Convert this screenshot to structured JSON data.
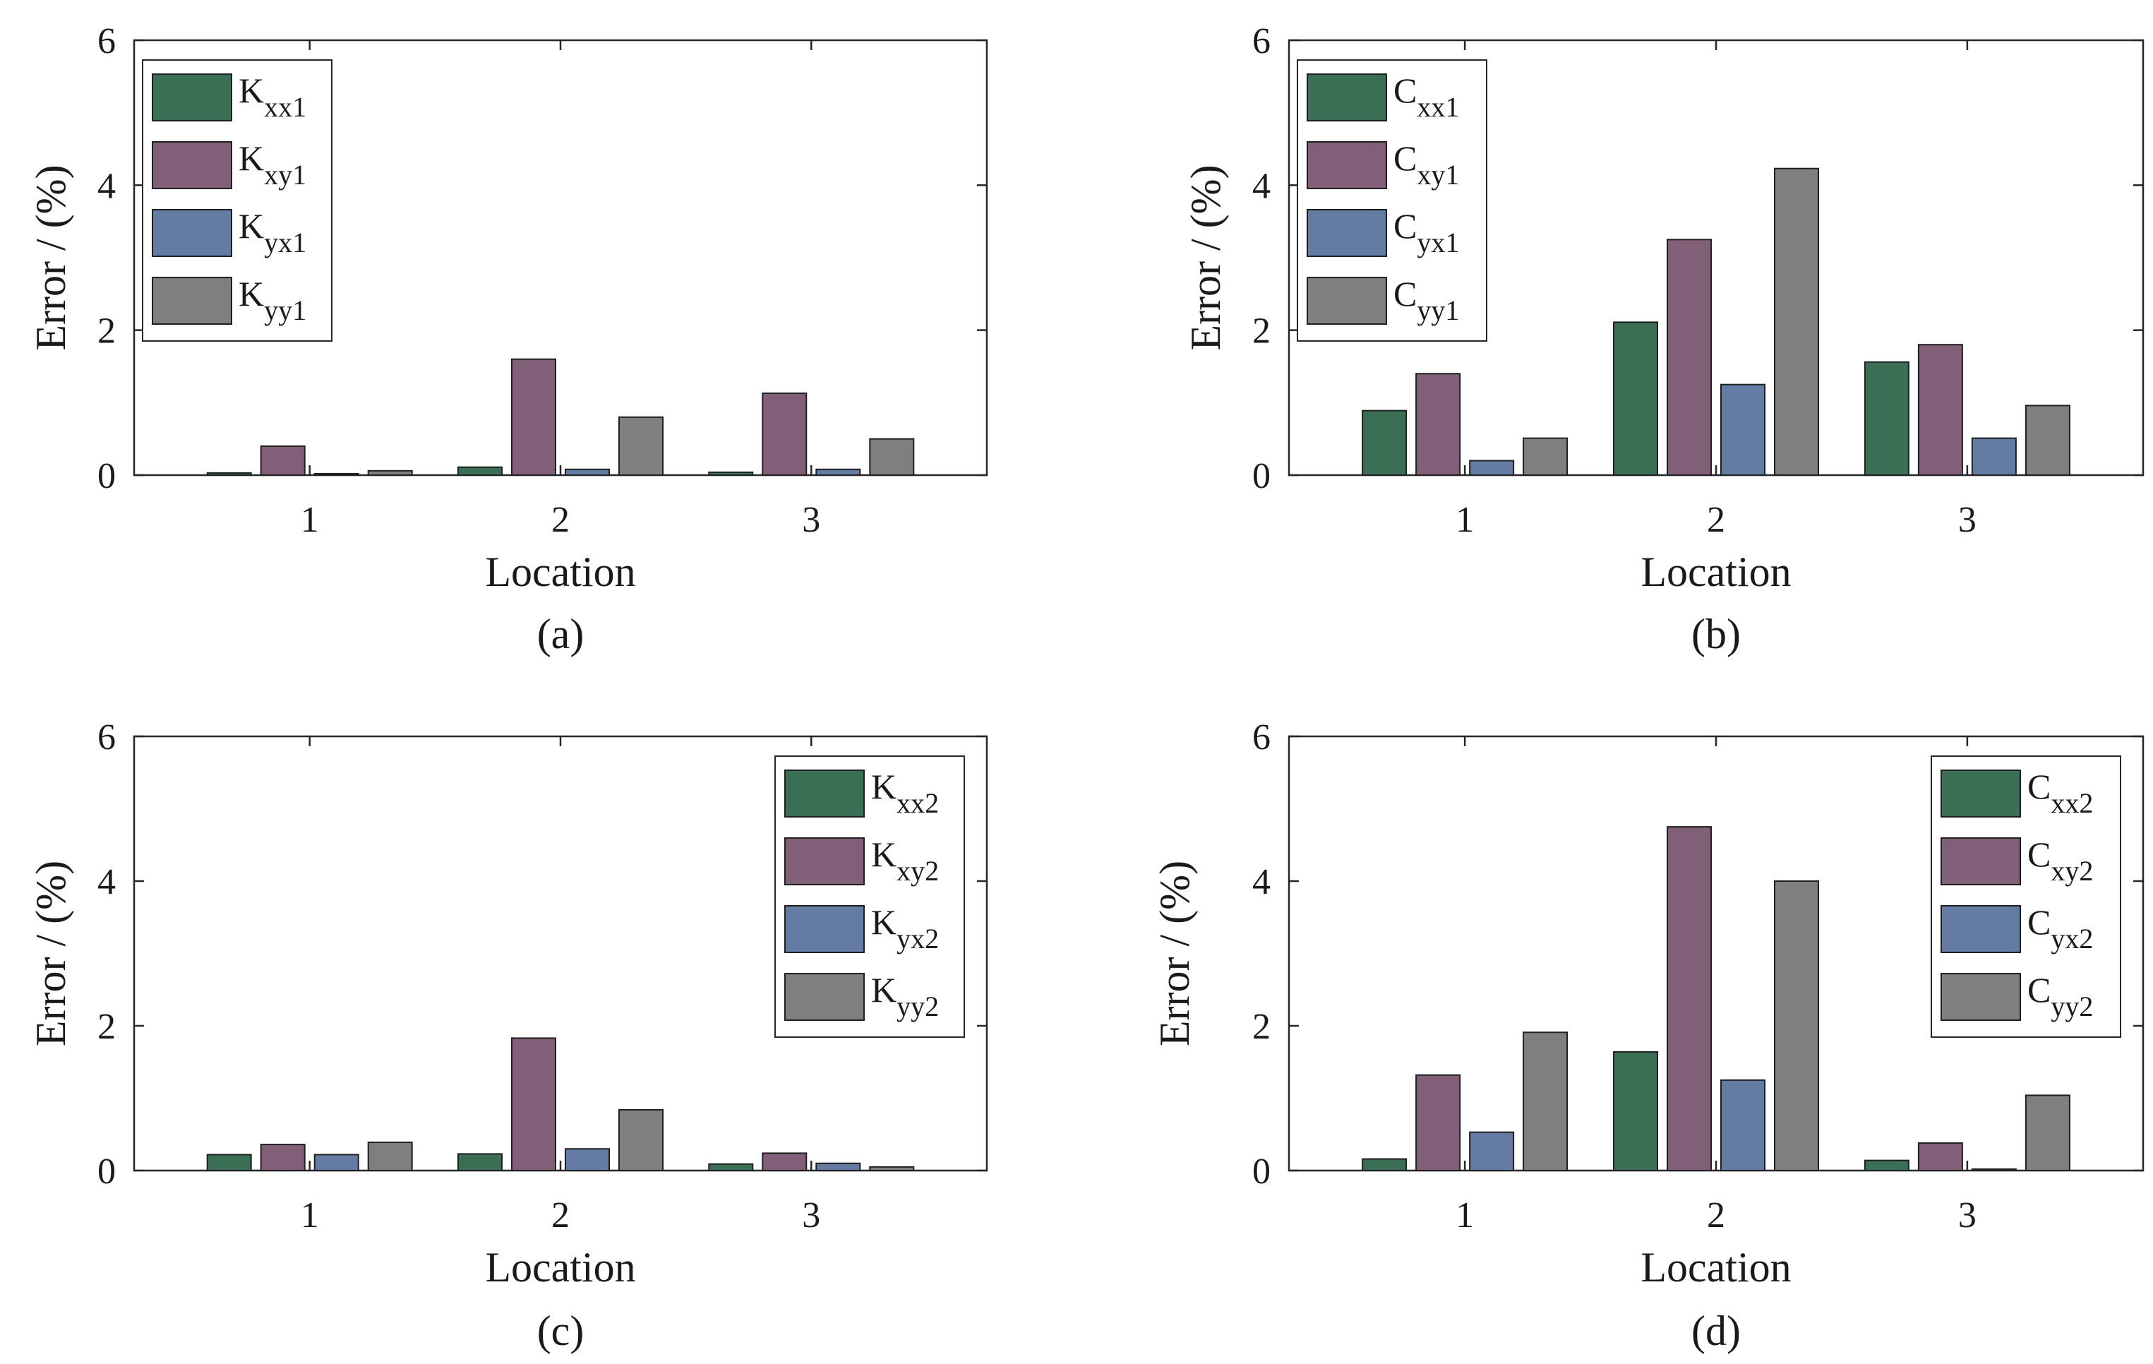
{
  "chart_data": [
    {
      "type": "bar",
      "panel": "a",
      "caption": "(a)",
      "xlabel": "Location",
      "ylabel": "Error / (%)",
      "categories": [
        "1",
        "2",
        "3"
      ],
      "ylim": [
        0,
        6
      ],
      "yticks": [
        "0",
        "2",
        "4",
        "6"
      ],
      "legend_position": "top-left",
      "series": [
        {
          "name": "K",
          "sub": "xx1",
          "color": "#3a6e55",
          "values": [
            0.03,
            0.11,
            0.04
          ]
        },
        {
          "name": "K",
          "sub": "xy1",
          "color": "#825f78",
          "values": [
            0.4,
            1.6,
            1.13
          ]
        },
        {
          "name": "K",
          "sub": "yx1",
          "color": "#647ba4",
          "values": [
            0.02,
            0.08,
            0.08
          ]
        },
        {
          "name": "K",
          "sub": "yy1",
          "color": "#7f7f7f",
          "values": [
            0.06,
            0.8,
            0.5
          ]
        }
      ]
    },
    {
      "type": "bar",
      "panel": "b",
      "caption": "(b)",
      "xlabel": "Location",
      "ylabel": "Error / (%)",
      "categories": [
        "1",
        "2",
        "3"
      ],
      "ylim": [
        0,
        6
      ],
      "yticks": [
        "0",
        "2",
        "4",
        "6"
      ],
      "legend_position": "top-left",
      "series": [
        {
          "name": "C",
          "sub": "xx1",
          "color": "#3a6e55",
          "values": [
            0.89,
            2.11,
            1.56
          ]
        },
        {
          "name": "C",
          "sub": "xy1",
          "color": "#825f78",
          "values": [
            1.4,
            3.25,
            1.8
          ]
        },
        {
          "name": "C",
          "sub": "yx1",
          "color": "#647ba4",
          "values": [
            0.2,
            1.25,
            0.51
          ]
        },
        {
          "name": "C",
          "sub": "yy1",
          "color": "#7f7f7f",
          "values": [
            0.51,
            4.23,
            0.96
          ]
        }
      ]
    },
    {
      "type": "bar",
      "panel": "c",
      "caption": "(c)",
      "xlabel": "Location",
      "ylabel": "Error / (%)",
      "categories": [
        "1",
        "2",
        "3"
      ],
      "ylim": [
        0,
        6
      ],
      "yticks": [
        "0",
        "2",
        "4",
        "6"
      ],
      "legend_position": "top-right",
      "series": [
        {
          "name": "K",
          "sub": "xx2",
          "color": "#3a6e55",
          "values": [
            0.22,
            0.23,
            0.09
          ]
        },
        {
          "name": "K",
          "sub": "xy2",
          "color": "#825f78",
          "values": [
            0.36,
            1.83,
            0.24
          ]
        },
        {
          "name": "K",
          "sub": "yx2",
          "color": "#647ba4",
          "values": [
            0.22,
            0.3,
            0.1
          ]
        },
        {
          "name": "K",
          "sub": "yy2",
          "color": "#7f7f7f",
          "values": [
            0.39,
            0.84,
            0.05
          ]
        }
      ]
    },
    {
      "type": "bar",
      "panel": "d",
      "caption": "(d)",
      "xlabel": "Location",
      "ylabel": "Error / (%)",
      "categories": [
        "1",
        "2",
        "3"
      ],
      "ylim": [
        0,
        6
      ],
      "yticks": [
        "0",
        "2",
        "4",
        "6"
      ],
      "legend_position": "top-right",
      "series": [
        {
          "name": "C",
          "sub": "xx2",
          "color": "#3a6e55",
          "values": [
            0.16,
            1.64,
            0.14
          ]
        },
        {
          "name": "C",
          "sub": "xy2",
          "color": "#825f78",
          "values": [
            1.32,
            4.75,
            0.38
          ]
        },
        {
          "name": "C",
          "sub": "yx2",
          "color": "#647ba4",
          "values": [
            0.53,
            1.25,
            0.02
          ]
        },
        {
          "name": "C",
          "sub": "yy2",
          "color": "#7f7f7f",
          "values": [
            1.91,
            4.0,
            1.04
          ]
        }
      ]
    }
  ]
}
